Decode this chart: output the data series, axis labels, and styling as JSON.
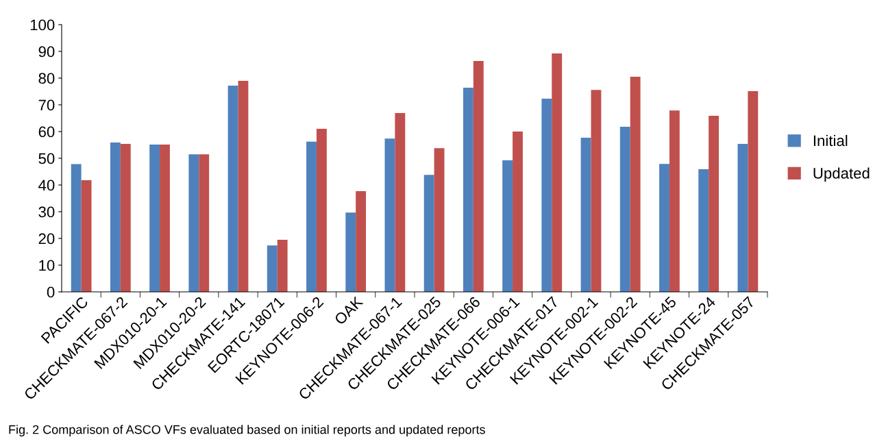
{
  "chart_data": {
    "type": "bar",
    "categories": [
      "PACIFIC",
      "CHECKMATE-067-2",
      "MDX010-20-1",
      "MDX010-20-2",
      "CHECKMATE-141",
      "EORTC-18071",
      "KEYNOTE-006-2",
      "OAK",
      "CHECKMATE-067-1",
      "CHECKMATE-025",
      "CHECKMATE-066",
      "KEYNOTE-006-1",
      "CHECKMATE-017",
      "KEYNOTE-002-1",
      "KEYNOTE-002-2",
      "KEYNOTE-45",
      "KEYNOTE-24",
      "CHECKMATE-057"
    ],
    "series": [
      {
        "name": "Initial",
        "color": "#4f81bd",
        "values": [
          47.8,
          55.9,
          55.1,
          51.5,
          77.2,
          17.4,
          56.2,
          29.7,
          57.4,
          43.8,
          76.4,
          49.2,
          72.3,
          57.7,
          61.8,
          47.9,
          45.9,
          55.4
        ]
      },
      {
        "name": "Updated",
        "color": "#c0504d",
        "values": [
          41.8,
          55.4,
          55.1,
          51.5,
          79.0,
          19.5,
          61.0,
          37.7,
          66.9,
          53.8,
          86.4,
          60.0,
          89.2,
          75.6,
          80.5,
          67.9,
          65.9,
          75.1
        ]
      }
    ],
    "ylim": [
      0,
      100
    ],
    "yticks": [
      0,
      10,
      20,
      30,
      40,
      50,
      60,
      70,
      80,
      90,
      100
    ],
    "grid": false,
    "legend": "right",
    "annotations": [
      "Fig. 2 Comparison of ASCO VFs evaluated based on initial reports and updated reports"
    ]
  }
}
